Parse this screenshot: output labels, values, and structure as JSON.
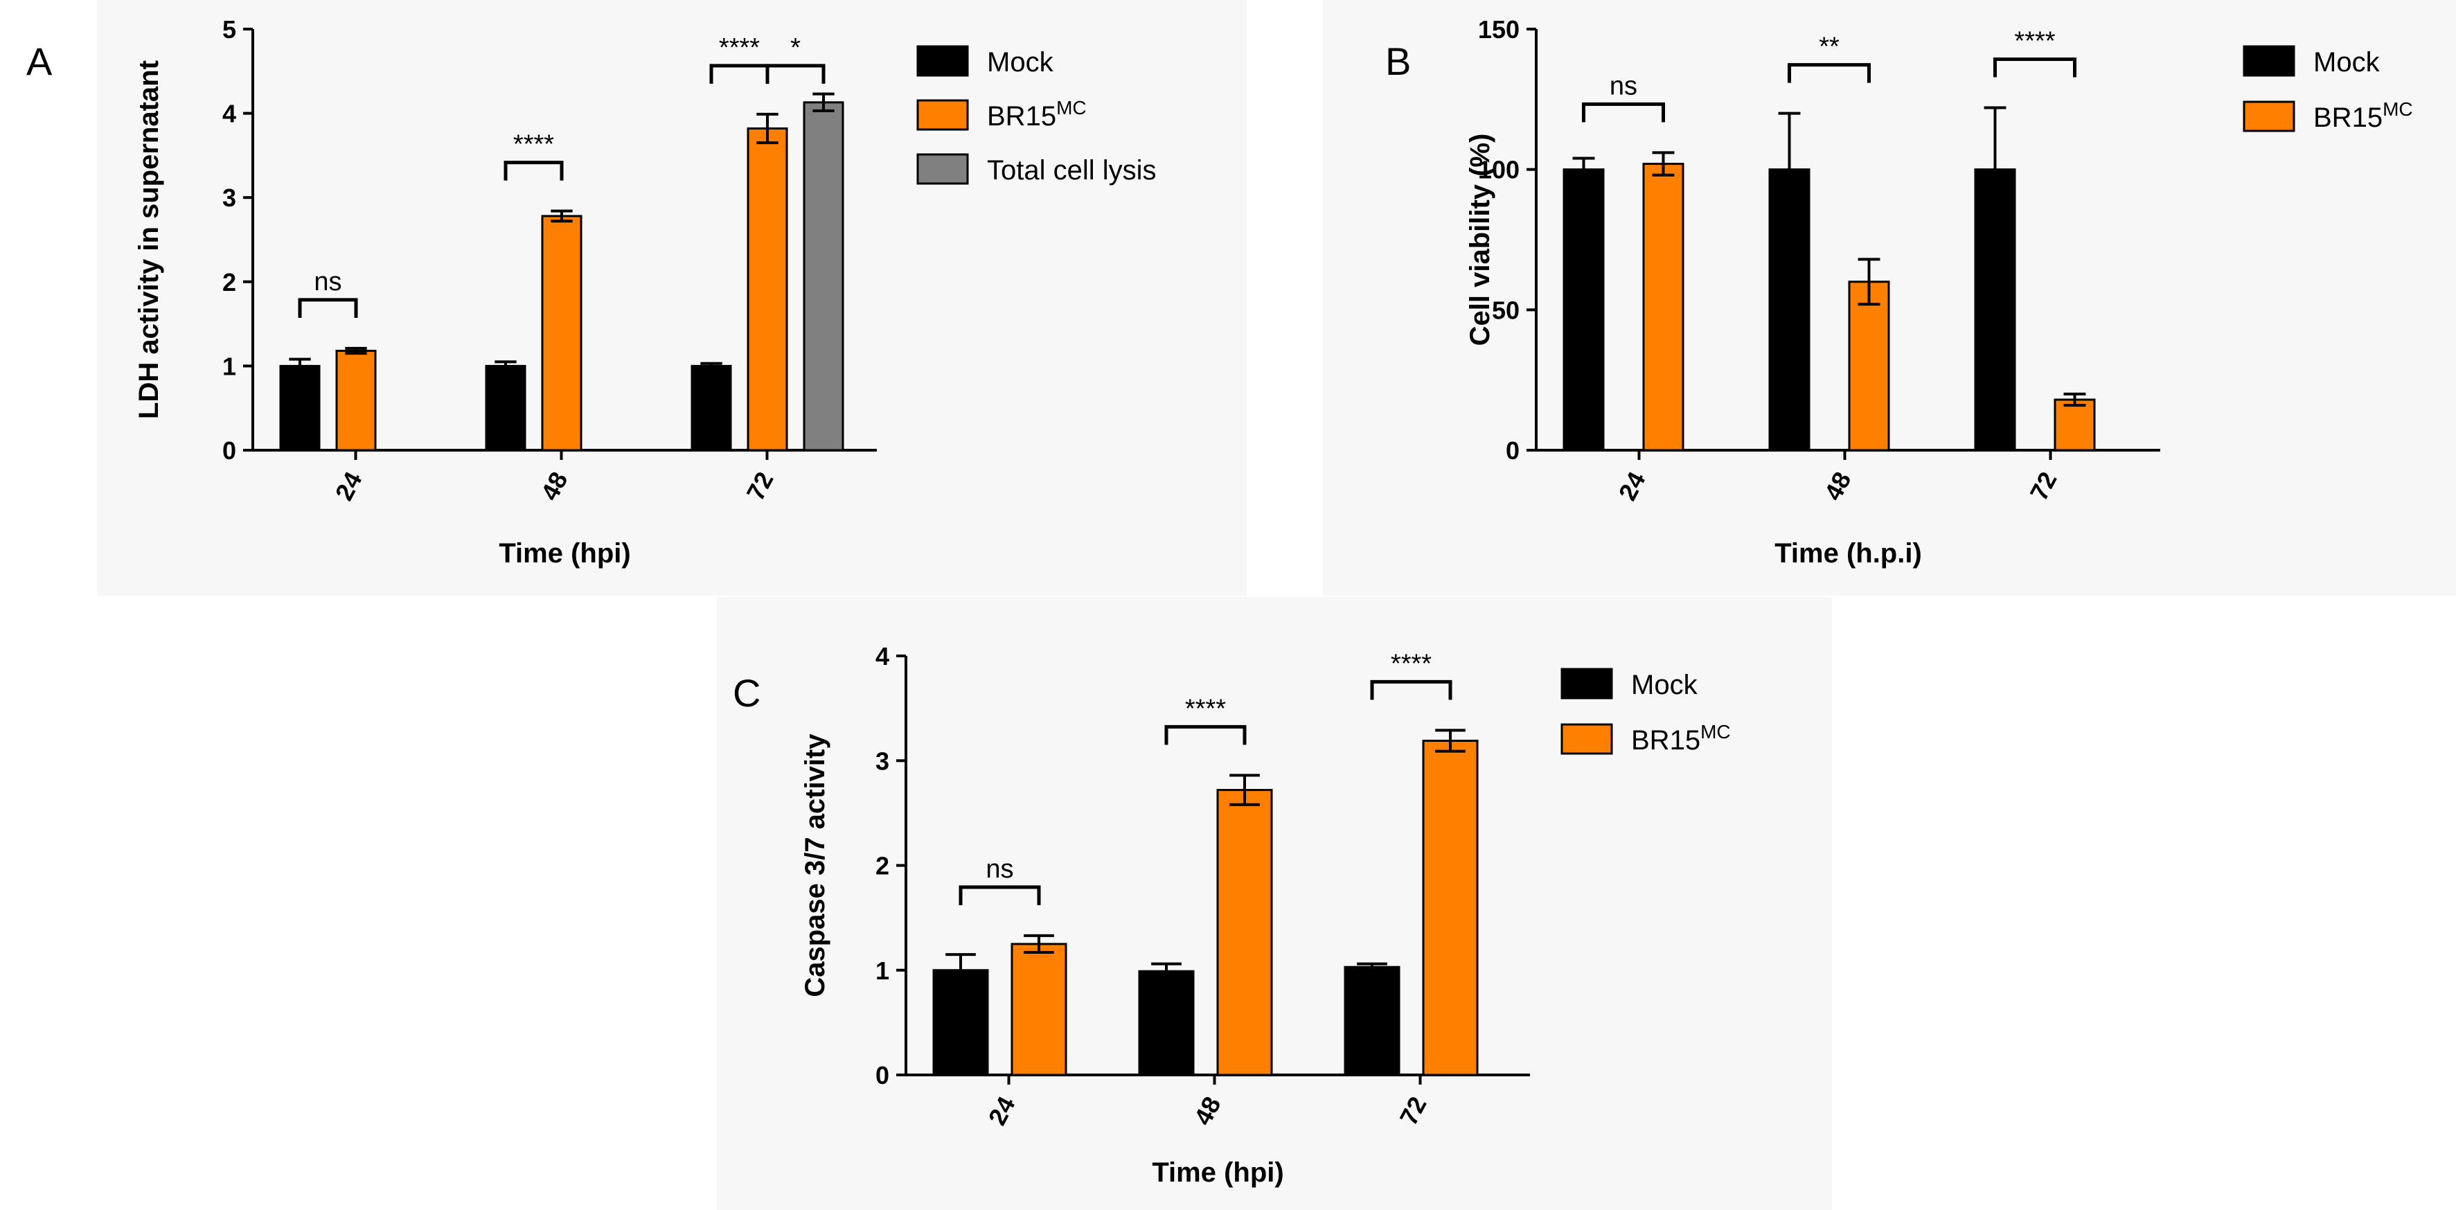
{
  "figure_labels": [
    "A",
    "B",
    "C"
  ],
  "colors": {
    "mock": "#000000",
    "br15": "#ff8000",
    "lysis": "#808080",
    "panel_bg": "#f7f7f7"
  },
  "chart_data": [
    {
      "panel": "A",
      "type": "bar",
      "title": "",
      "xlabel": "Time (hpi)",
      "ylabel": "LDH activity in supernatant",
      "ylim": [
        0,
        5
      ],
      "yticks": [
        "0",
        "1",
        "2",
        "3",
        "4",
        "5"
      ],
      "categories": [
        "24",
        "48",
        "72"
      ],
      "series": [
        {
          "name": "Mock",
          "values": [
            1.0,
            1.0,
            1.0
          ],
          "errors": [
            0.08,
            0.05,
            0.03
          ]
        },
        {
          "name": "BR15",
          "name_sup": "MC",
          "values": [
            1.18,
            2.78,
            3.82
          ],
          "errors": [
            0.03,
            0.06,
            0.17
          ]
        },
        {
          "name": "Total cell lysis",
          "values": [
            null,
            null,
            4.13
          ],
          "errors": [
            null,
            null,
            0.1
          ]
        }
      ],
      "significance": [
        {
          "category": "24",
          "from": "Mock",
          "to": "BR15",
          "label": "ns"
        },
        {
          "category": "48",
          "from": "Mock",
          "to": "BR15",
          "label": "****"
        },
        {
          "category": "72",
          "from": "Mock",
          "to": "BR15",
          "label": "****"
        },
        {
          "category": "72",
          "from": "BR15",
          "to": "Total cell lysis",
          "label": "*"
        }
      ],
      "legend": "right"
    },
    {
      "panel": "B",
      "type": "bar",
      "title": "",
      "xlabel": "Time (h.p.i)",
      "ylabel": "Cell viability (%)",
      "ylim": [
        0,
        150
      ],
      "yticks": [
        "0",
        "50",
        "100",
        "150"
      ],
      "categories": [
        "24",
        "48",
        "72"
      ],
      "series": [
        {
          "name": "Mock",
          "values": [
            100,
            100,
            100
          ],
          "errors": [
            4,
            20,
            22
          ]
        },
        {
          "name": "BR15",
          "name_sup": "MC",
          "values": [
            102,
            60,
            18
          ],
          "errors": [
            4,
            8,
            2
          ]
        }
      ],
      "significance": [
        {
          "category": "24",
          "from": "Mock",
          "to": "BR15",
          "label": "ns"
        },
        {
          "category": "48",
          "from": "Mock",
          "to": "BR15",
          "label": "**"
        },
        {
          "category": "72",
          "from": "Mock",
          "to": "BR15",
          "label": "****"
        }
      ],
      "legend": "right"
    },
    {
      "panel": "C",
      "type": "bar",
      "title": "",
      "xlabel": "Time (hpi)",
      "ylabel": "Caspase 3/7 activity",
      "ylim": [
        0,
        4
      ],
      "yticks": [
        "0",
        "1",
        "2",
        "3",
        "4"
      ],
      "categories": [
        "24",
        "48",
        "72"
      ],
      "series": [
        {
          "name": "Mock",
          "values": [
            1.0,
            0.99,
            1.03
          ],
          "errors": [
            0.15,
            0.07,
            0.03
          ]
        },
        {
          "name": "BR15",
          "name_sup": "MC",
          "values": [
            1.25,
            2.72,
            3.19
          ],
          "errors": [
            0.08,
            0.14,
            0.1
          ]
        }
      ],
      "significance": [
        {
          "category": "24",
          "from": "Mock",
          "to": "BR15",
          "label": "ns"
        },
        {
          "category": "48",
          "from": "Mock",
          "to": "BR15",
          "label": "****"
        },
        {
          "category": "72",
          "from": "Mock",
          "to": "BR15",
          "label": "****"
        }
      ],
      "legend": "right"
    }
  ]
}
